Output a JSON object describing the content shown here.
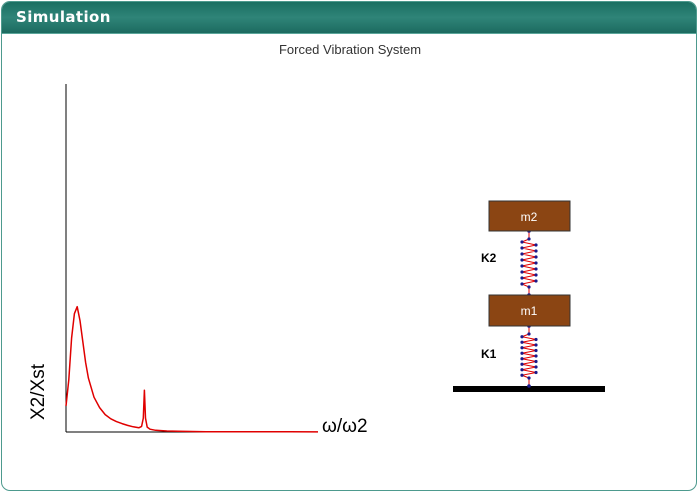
{
  "header": {
    "title": "Simulation"
  },
  "simulation": {
    "title": "Forced Vibration System"
  },
  "chart_data": {
    "type": "line",
    "xlabel": "ω/ω2",
    "ylabel": "X2/Xst",
    "series": [
      {
        "color": "#e00000",
        "x": [
          0.0,
          0.05,
          0.1,
          0.15,
          0.2,
          0.25,
          0.3,
          0.35,
          0.4,
          0.5,
          0.6,
          0.7,
          0.8,
          0.9,
          1.0,
          1.1,
          1.2,
          1.3,
          1.35,
          1.38,
          1.4,
          1.42,
          1.45,
          1.5,
          1.6,
          1.8,
          2.0,
          2.5,
          3.0,
          3.5,
          4.0,
          4.5
        ],
        "y": [
          0.075,
          0.15,
          0.27,
          0.34,
          0.36,
          0.32,
          0.26,
          0.2,
          0.155,
          0.1,
          0.07,
          0.05,
          0.038,
          0.03,
          0.024,
          0.019,
          0.015,
          0.012,
          0.016,
          0.04,
          0.12,
          0.04,
          0.014,
          0.008,
          0.005,
          0.003,
          0.002,
          0.001,
          0.0008,
          0.0006,
          0.0005,
          0.0004
        ]
      }
    ],
    "xlim": [
      0,
      4.5
    ],
    "ylim": [
      0,
      1.0
    ],
    "grid": false
  },
  "diagram": {
    "mass_top_label": "m2",
    "mass_bottom_label": "m1",
    "spring_top_label": "K2",
    "spring_bottom_label": "K1",
    "mass_color": "#8b4513",
    "spring_color": "#e00000",
    "node_color": "#1a1a8c",
    "ground_color": "#000000"
  }
}
